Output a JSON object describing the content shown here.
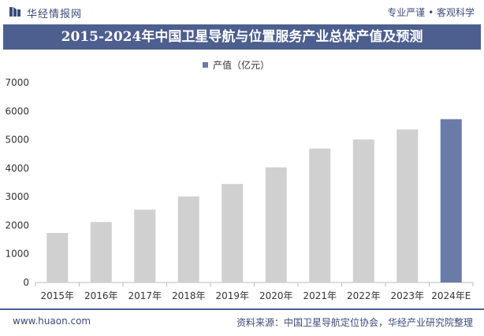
{
  "brand": {
    "name": "华经情报网",
    "slogan": "专业严谨 • 客观科学"
  },
  "title": "2015-2024年中国卫星导航与位置服务产业总体产值及预测",
  "footer": {
    "website": "www.huaon.com",
    "source": "资料来源：中国卫星导航定位协会，华经产业研究院整理"
  },
  "colors": {
    "bar": "#d0d0d0",
    "forecast": "#6b7ba8",
    "title_bg": "#4d5f8f",
    "brand": "#3c4a7a"
  },
  "chart_data": {
    "type": "bar",
    "categories": [
      "2015年",
      "2016年",
      "2017年",
      "2018年",
      "2019年",
      "2020年",
      "2021年",
      "2022年",
      "2023年",
      "2024年E"
    ],
    "series": [
      {
        "name": "产值（亿元）",
        "values": [
          1735,
          2118,
          2550,
          3016,
          3450,
          4033,
          4690,
          5007,
          5362,
          5720
        ]
      }
    ],
    "ylim": [
      0,
      7000
    ],
    "yticks": [
      0,
      1000,
      2000,
      3000,
      4000,
      5000,
      6000,
      7000
    ],
    "forecast_category": "2024年E",
    "legend_position": "top-center",
    "grid": false
  }
}
